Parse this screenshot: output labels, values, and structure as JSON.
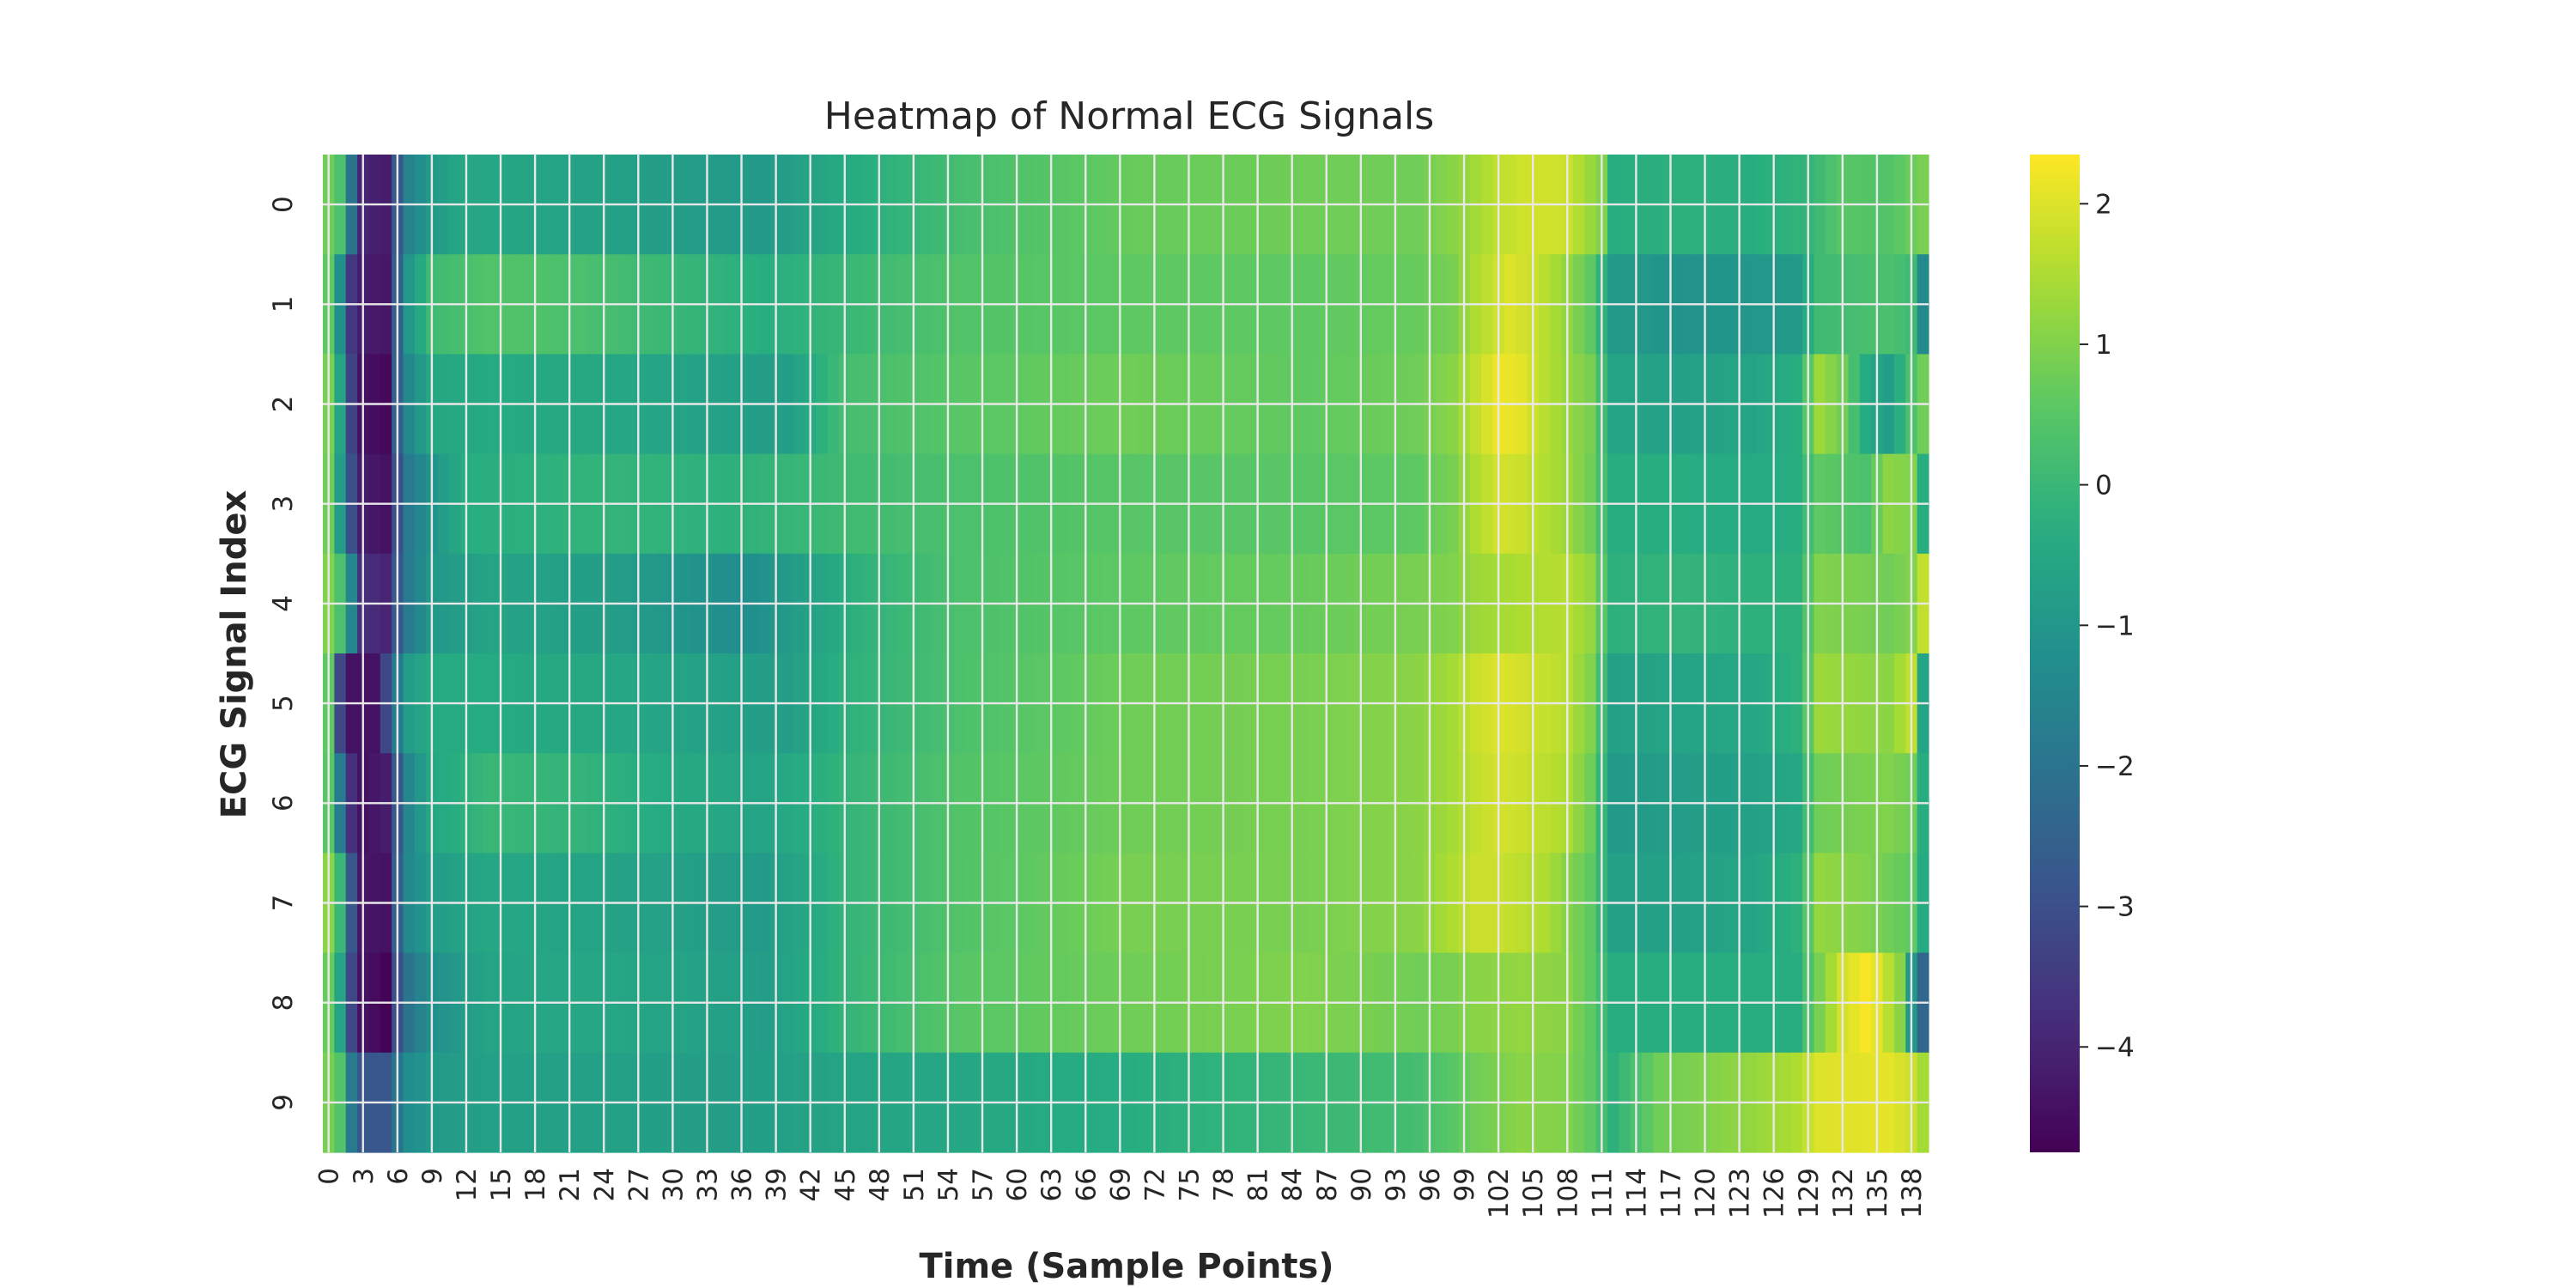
{
  "chart_data": {
    "type": "heatmap",
    "title": "Heatmap of Normal ECG Signals",
    "xlabel": "Time (Sample Points)",
    "ylabel": "ECG Signal Index",
    "rows": [
      "0",
      "1",
      "2",
      "3",
      "4",
      "5",
      "6",
      "7",
      "8",
      "9"
    ],
    "n_columns": 140,
    "x_ticks": [
      "0",
      "3",
      "6",
      "9",
      "12",
      "15",
      "18",
      "21",
      "24",
      "27",
      "30",
      "33",
      "36",
      "39",
      "42",
      "45",
      "48",
      "51",
      "54",
      "57",
      "60",
      "63",
      "66",
      "69",
      "72",
      "75",
      "78",
      "81",
      "84",
      "87",
      "90",
      "93",
      "96",
      "99",
      "102",
      "105",
      "108",
      "111",
      "114",
      "117",
      "120",
      "123",
      "126",
      "129",
      "132",
      "135",
      "138"
    ],
    "colormap": "viridis",
    "colorbar": {
      "min": -4.75,
      "max": 2.35,
      "ticks": [
        "2",
        "1",
        "0",
        "−1",
        "−2",
        "−3",
        "−4"
      ],
      "tick_values": [
        2,
        1,
        0,
        -1,
        -2,
        -3,
        -4
      ]
    },
    "grid": true,
    "rows_profile": [
      {
        "anchors": [
          [
            0,
            0.8
          ],
          [
            1,
            0.3
          ],
          [
            2,
            -2.0
          ],
          [
            3,
            -4.0
          ],
          [
            5,
            -4.2
          ],
          [
            6,
            -2.8
          ],
          [
            7,
            -1.6
          ],
          [
            9,
            -0.9
          ],
          [
            12,
            -0.5
          ],
          [
            20,
            -0.6
          ],
          [
            30,
            -0.8
          ],
          [
            38,
            -0.9
          ],
          [
            45,
            -0.4
          ],
          [
            55,
            0.2
          ],
          [
            70,
            0.7
          ],
          [
            85,
            0.8
          ],
          [
            95,
            0.8
          ],
          [
            99,
            1.2
          ],
          [
            102,
            1.7
          ],
          [
            105,
            1.9
          ],
          [
            108,
            1.8
          ],
          [
            111,
            1.0
          ],
          [
            112,
            -0.3
          ],
          [
            118,
            -0.2
          ],
          [
            124,
            -0.3
          ],
          [
            129,
            -0.1
          ],
          [
            132,
            0.5
          ],
          [
            136,
            0.4
          ],
          [
            139,
            0.9
          ]
        ]
      },
      {
        "anchors": [
          [
            0,
            0.6
          ],
          [
            1,
            -1.2
          ],
          [
            2,
            -3.6
          ],
          [
            3,
            -4.2
          ],
          [
            5,
            -4.3
          ],
          [
            6,
            -2.6
          ],
          [
            7,
            -1.0
          ],
          [
            9,
            0.1
          ],
          [
            14,
            0.4
          ],
          [
            22,
            0.3
          ],
          [
            30,
            0.0
          ],
          [
            38,
            -0.3
          ],
          [
            45,
            0.0
          ],
          [
            55,
            0.4
          ],
          [
            70,
            0.6
          ],
          [
            85,
            0.6
          ],
          [
            95,
            0.7
          ],
          [
            98,
            0.9
          ],
          [
            100,
            1.5
          ],
          [
            103,
            2.0
          ],
          [
            105,
            1.8
          ],
          [
            108,
            1.2
          ],
          [
            110,
            0.6
          ],
          [
            112,
            -0.9
          ],
          [
            118,
            -1.1
          ],
          [
            124,
            -1.0
          ],
          [
            128,
            -0.9
          ],
          [
            130,
            0.1
          ],
          [
            136,
            0.3
          ],
          [
            138,
            0.1
          ],
          [
            139,
            -1.4
          ]
        ]
      },
      {
        "anchors": [
          [
            0,
            0.9
          ],
          [
            1,
            -0.6
          ],
          [
            2,
            -3.3
          ],
          [
            3,
            -4.4
          ],
          [
            5,
            -4.6
          ],
          [
            6,
            -2.6
          ],
          [
            7,
            -1.4
          ],
          [
            9,
            -0.5
          ],
          [
            15,
            -0.4
          ],
          [
            25,
            -0.5
          ],
          [
            35,
            -0.7
          ],
          [
            40,
            -0.8
          ],
          [
            45,
            0.2
          ],
          [
            55,
            0.5
          ],
          [
            70,
            0.8
          ],
          [
            85,
            0.6
          ],
          [
            95,
            0.8
          ],
          [
            98,
            1.1
          ],
          [
            100,
            1.7
          ],
          [
            102,
            2.2
          ],
          [
            104,
            2.1
          ],
          [
            106,
            1.6
          ],
          [
            110,
            0.9
          ],
          [
            112,
            -0.6
          ],
          [
            118,
            -0.7
          ],
          [
            124,
            -0.6
          ],
          [
            128,
            -0.3
          ],
          [
            130,
            1.3
          ],
          [
            132,
            0.8
          ],
          [
            134,
            -0.4
          ],
          [
            136,
            -0.8
          ],
          [
            138,
            0.3
          ],
          [
            139,
            0.8
          ]
        ]
      },
      {
        "anchors": [
          [
            0,
            0.8
          ],
          [
            1,
            -0.8
          ],
          [
            2,
            -3.0
          ],
          [
            3,
            -4.2
          ],
          [
            5,
            -4.4
          ],
          [
            6,
            -3.0
          ],
          [
            7,
            -1.8
          ],
          [
            9,
            -1.1
          ],
          [
            12,
            -0.3
          ],
          [
            25,
            -0.1
          ],
          [
            35,
            -0.2
          ],
          [
            45,
            0.1
          ],
          [
            55,
            0.3
          ],
          [
            70,
            0.5
          ],
          [
            85,
            0.5
          ],
          [
            95,
            0.6
          ],
          [
            98,
            0.9
          ],
          [
            100,
            1.5
          ],
          [
            102,
            1.9
          ],
          [
            104,
            1.8
          ],
          [
            108,
            1.3
          ],
          [
            110,
            0.8
          ],
          [
            112,
            -0.3
          ],
          [
            118,
            -0.3
          ],
          [
            124,
            -0.4
          ],
          [
            128,
            -0.3
          ],
          [
            130,
            0.6
          ],
          [
            134,
            0.3
          ],
          [
            136,
            1.1
          ],
          [
            138,
            1.0
          ],
          [
            139,
            -0.3
          ]
        ]
      },
      {
        "anchors": [
          [
            0,
            1.0
          ],
          [
            1,
            0.3
          ],
          [
            2,
            -1.5
          ],
          [
            3,
            -3.8
          ],
          [
            5,
            -4.0
          ],
          [
            6,
            -2.8
          ],
          [
            7,
            -1.8
          ],
          [
            9,
            -1.0
          ],
          [
            14,
            -0.6
          ],
          [
            25,
            -0.8
          ],
          [
            32,
            -1.1
          ],
          [
            36,
            -1.3
          ],
          [
            40,
            -0.9
          ],
          [
            46,
            -0.2
          ],
          [
            55,
            0.3
          ],
          [
            70,
            0.6
          ],
          [
            85,
            0.7
          ],
          [
            95,
            0.9
          ],
          [
            98,
            1.0
          ],
          [
            100,
            1.3
          ],
          [
            104,
            1.5
          ],
          [
            108,
            1.6
          ],
          [
            110,
            1.2
          ],
          [
            112,
            -0.2
          ],
          [
            118,
            -0.1
          ],
          [
            124,
            -0.2
          ],
          [
            128,
            -0.2
          ],
          [
            130,
            1.0
          ],
          [
            134,
            0.9
          ],
          [
            136,
            0.8
          ],
          [
            138,
            1.0
          ],
          [
            139,
            1.7
          ]
        ]
      },
      {
        "anchors": [
          [
            0,
            0.6
          ],
          [
            1,
            -3.2
          ],
          [
            2,
            -4.4
          ],
          [
            4,
            -4.4
          ],
          [
            5,
            -3.2
          ],
          [
            6,
            -1.8
          ],
          [
            7,
            -0.8
          ],
          [
            9,
            -0.4
          ],
          [
            15,
            -0.4
          ],
          [
            25,
            -0.5
          ],
          [
            35,
            -0.7
          ],
          [
            40,
            -0.8
          ],
          [
            45,
            -0.2
          ],
          [
            55,
            0.3
          ],
          [
            70,
            0.8
          ],
          [
            85,
            0.9
          ],
          [
            95,
            1.1
          ],
          [
            98,
            1.4
          ],
          [
            100,
            1.8
          ],
          [
            102,
            2.0
          ],
          [
            104,
            1.9
          ],
          [
            108,
            1.6
          ],
          [
            110,
            1.0
          ],
          [
            112,
            -0.7
          ],
          [
            118,
            -0.6
          ],
          [
            124,
            -0.5
          ],
          [
            128,
            -0.2
          ],
          [
            130,
            1.3
          ],
          [
            136,
            1.1
          ],
          [
            138,
            1.7
          ],
          [
            139,
            -0.6
          ]
        ]
      },
      {
        "anchors": [
          [
            0,
            0.5
          ],
          [
            1,
            -1.8
          ],
          [
            2,
            -3.8
          ],
          [
            3,
            -4.4
          ],
          [
            5,
            -4.2
          ],
          [
            6,
            -2.8
          ],
          [
            7,
            -1.5
          ],
          [
            9,
            -0.5
          ],
          [
            14,
            0.0
          ],
          [
            22,
            -0.1
          ],
          [
            30,
            -0.4
          ],
          [
            38,
            -0.6
          ],
          [
            45,
            -0.1
          ],
          [
            55,
            0.4
          ],
          [
            70,
            0.8
          ],
          [
            85,
            0.9
          ],
          [
            95,
            1.1
          ],
          [
            98,
            1.4
          ],
          [
            100,
            1.7
          ],
          [
            102,
            1.9
          ],
          [
            104,
            1.8
          ],
          [
            108,
            1.5
          ],
          [
            110,
            0.8
          ],
          [
            112,
            -0.9
          ],
          [
            118,
            -0.8
          ],
          [
            124,
            -0.7
          ],
          [
            128,
            -0.5
          ],
          [
            130,
            0.8
          ],
          [
            136,
            1.0
          ],
          [
            138,
            0.8
          ],
          [
            139,
            -0.3
          ]
        ]
      },
      {
        "anchors": [
          [
            0,
            1.1
          ],
          [
            1,
            0.0
          ],
          [
            2,
            -2.8
          ],
          [
            3,
            -4.3
          ],
          [
            5,
            -4.4
          ],
          [
            6,
            -2.6
          ],
          [
            7,
            -1.4
          ],
          [
            9,
            -0.8
          ],
          [
            14,
            -0.5
          ],
          [
            22,
            -0.6
          ],
          [
            30,
            -0.7
          ],
          [
            38,
            -0.9
          ],
          [
            45,
            -0.1
          ],
          [
            55,
            0.4
          ],
          [
            70,
            0.9
          ],
          [
            85,
            0.9
          ],
          [
            95,
            1.1
          ],
          [
            98,
            1.5
          ],
          [
            100,
            1.8
          ],
          [
            102,
            1.8
          ],
          [
            106,
            1.5
          ],
          [
            110,
            0.6
          ],
          [
            112,
            -0.7
          ],
          [
            118,
            -0.7
          ],
          [
            124,
            -0.6
          ],
          [
            128,
            -0.2
          ],
          [
            130,
            1.2
          ],
          [
            134,
            1.0
          ],
          [
            136,
            0.8
          ],
          [
            138,
            0.6
          ],
          [
            139,
            -0.4
          ]
        ]
      },
      {
        "anchors": [
          [
            0,
            0.7
          ],
          [
            1,
            -0.6
          ],
          [
            2,
            -3.2
          ],
          [
            3,
            -4.4
          ],
          [
            5,
            -4.7
          ],
          [
            6,
            -3.0
          ],
          [
            7,
            -2.0
          ],
          [
            9,
            -1.2
          ],
          [
            14,
            -0.6
          ],
          [
            22,
            -0.5
          ],
          [
            30,
            -0.6
          ],
          [
            38,
            -0.8
          ],
          [
            45,
            -0.1
          ],
          [
            55,
            0.5
          ],
          [
            70,
            0.8
          ],
          [
            85,
            1.0
          ],
          [
            95,
            0.8
          ],
          [
            98,
            0.9
          ],
          [
            100,
            1.1
          ],
          [
            104,
            1.2
          ],
          [
            108,
            1.1
          ],
          [
            110,
            0.6
          ],
          [
            112,
            -0.3
          ],
          [
            118,
            -0.3
          ],
          [
            124,
            -0.3
          ],
          [
            128,
            -0.3
          ],
          [
            130,
            0.9
          ],
          [
            132,
            1.9
          ],
          [
            134,
            2.3
          ],
          [
            135,
            2.1
          ],
          [
            137,
            1.1
          ],
          [
            138,
            -1.0
          ],
          [
            139,
            -2.4
          ]
        ]
      },
      {
        "anchors": [
          [
            0,
            0.9
          ],
          [
            1,
            0.4
          ],
          [
            2,
            -1.8
          ],
          [
            3,
            -2.8
          ],
          [
            5,
            -2.8
          ],
          [
            6,
            -2.0
          ],
          [
            7,
            -1.3
          ],
          [
            9,
            -0.9
          ],
          [
            14,
            -0.7
          ],
          [
            25,
            -0.7
          ],
          [
            35,
            -0.8
          ],
          [
            45,
            -0.6
          ],
          [
            55,
            -0.5
          ],
          [
            70,
            -0.3
          ],
          [
            85,
            0.0
          ],
          [
            95,
            0.2
          ],
          [
            98,
            0.5
          ],
          [
            100,
            0.8
          ],
          [
            104,
            1.1
          ],
          [
            108,
            1.0
          ],
          [
            110,
            0.6
          ],
          [
            112,
            -0.2
          ],
          [
            114,
            0.3
          ],
          [
            116,
            0.8
          ],
          [
            120,
            1.0
          ],
          [
            124,
            1.2
          ],
          [
            128,
            1.5
          ],
          [
            130,
            2.0
          ],
          [
            136,
            2.1
          ],
          [
            138,
            1.8
          ],
          [
            139,
            1.4
          ]
        ]
      }
    ]
  }
}
